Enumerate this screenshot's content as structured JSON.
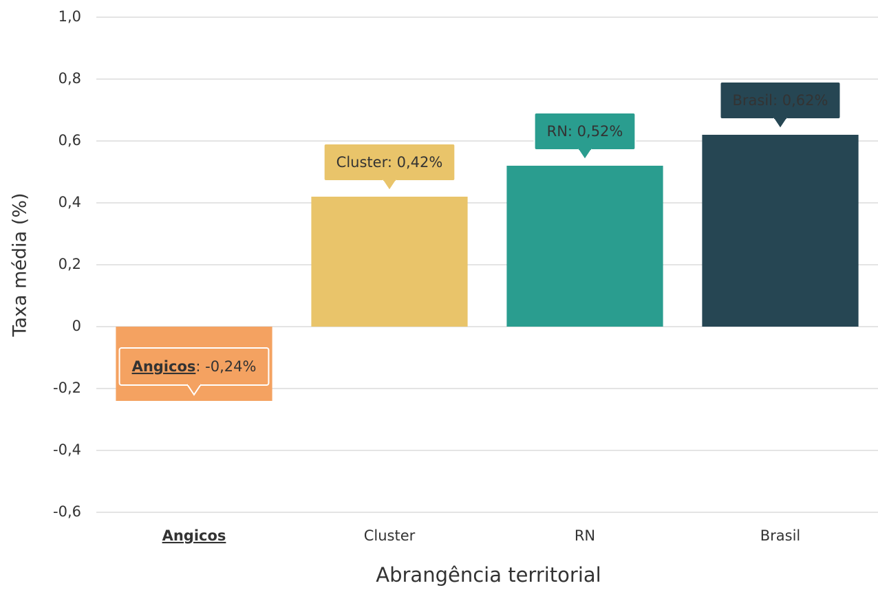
{
  "chart_data": {
    "type": "bar",
    "y_label": "Taxa média (%)",
    "x_label": "Abrangência territorial",
    "categories": [
      "Angicos",
      "Cluster",
      "RN",
      "Brasil"
    ],
    "values": [
      -0.24,
      0.42,
      0.52,
      0.62
    ],
    "value_labels": [
      "Angicos: -0,24%",
      "Cluster: 0,42%",
      "RN: 0,52%",
      "Brasil: 0,62%"
    ],
    "colors": [
      "#f4a261",
      "#e9c46a",
      "#2a9d8f",
      "#264653"
    ],
    "highlight": "Angicos",
    "ylim": [
      -0.6,
      1.0
    ],
    "yticks": [
      {
        "value": -0.6,
        "label": "-0,6"
      },
      {
        "value": -0.4,
        "label": "-0,4"
      },
      {
        "value": -0.2,
        "label": "-0,2"
      },
      0,
      {
        "value": 0.2,
        "label": "0,2"
      },
      {
        "value": 0.4,
        "label": "0,4"
      },
      {
        "value": 0.6,
        "label": "0,6"
      },
      {
        "value": 0.8,
        "label": "0,8"
      },
      {
        "value": 1.0,
        "label": "1,0"
      }
    ],
    "grid": true
  }
}
